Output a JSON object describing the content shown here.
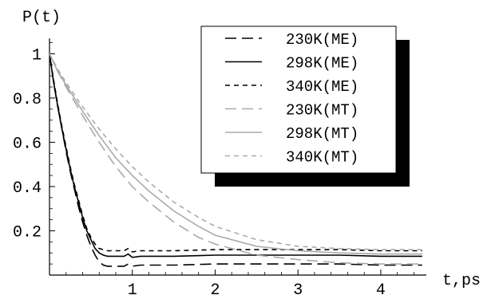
{
  "chart_data": {
    "type": "line",
    "title": "",
    "xlabel": "t,ps",
    "ylabel": "P(t)",
    "xlim": [
      0,
      4.55
    ],
    "ylim": [
      0,
      1.07
    ],
    "xticks": [
      1,
      2,
      3,
      4
    ],
    "yticks": [
      0.2,
      0.4,
      0.6,
      0.8,
      1
    ],
    "ytick_labels": [
      "0.2",
      "0.4",
      "0.6",
      "0.8",
      "1"
    ],
    "grid": false,
    "legend_position": "top-right",
    "series": [
      {
        "name": "230K(ME)",
        "color": "#000000",
        "dash": "long-dash",
        "x": [
          0,
          0.05,
          0.1,
          0.15,
          0.2,
          0.25,
          0.3,
          0.35,
          0.4,
          0.45,
          0.5,
          0.55,
          0.6,
          0.65,
          0.7,
          0.8,
          0.9,
          0.95,
          1.0,
          1.1,
          1.5,
          2.0,
          2.5,
          3.0,
          3.5,
          4.0,
          4.5
        ],
        "y": [
          1.0,
          0.87,
          0.76,
          0.66,
          0.56,
          0.47,
          0.39,
          0.31,
          0.24,
          0.18,
          0.13,
          0.09,
          0.06,
          0.045,
          0.04,
          0.04,
          0.04,
          0.05,
          0.04,
          0.045,
          0.045,
          0.05,
          0.05,
          0.05,
          0.05,
          0.045,
          0.045
        ]
      },
      {
        "name": "298K(ME)",
        "color": "#000000",
        "dash": "solid",
        "x": [
          0,
          0.05,
          0.1,
          0.15,
          0.2,
          0.25,
          0.3,
          0.35,
          0.4,
          0.45,
          0.5,
          0.55,
          0.6,
          0.65,
          0.7,
          0.8,
          0.9,
          0.95,
          1.0,
          1.1,
          1.5,
          2.0,
          2.5,
          3.0,
          3.5,
          4.0,
          4.5
        ],
        "y": [
          1.0,
          0.87,
          0.76,
          0.66,
          0.57,
          0.48,
          0.4,
          0.33,
          0.26,
          0.2,
          0.16,
          0.12,
          0.1,
          0.09,
          0.085,
          0.085,
          0.085,
          0.095,
          0.08,
          0.085,
          0.085,
          0.09,
          0.09,
          0.09,
          0.09,
          0.085,
          0.085
        ]
      },
      {
        "name": "340K(ME)",
        "color": "#000000",
        "dash": "short-dash",
        "x": [
          0,
          0.05,
          0.1,
          0.15,
          0.2,
          0.25,
          0.3,
          0.35,
          0.4,
          0.45,
          0.5,
          0.55,
          0.6,
          0.65,
          0.7,
          0.8,
          0.9,
          0.95,
          1.0,
          1.1,
          1.5,
          2.0,
          2.5,
          3.0,
          3.5,
          4.0,
          4.5
        ],
        "y": [
          1.0,
          0.88,
          0.77,
          0.67,
          0.58,
          0.49,
          0.41,
          0.34,
          0.27,
          0.21,
          0.17,
          0.14,
          0.12,
          0.115,
          0.11,
          0.11,
          0.11,
          0.12,
          0.105,
          0.11,
          0.11,
          0.115,
          0.115,
          0.115,
          0.115,
          0.11,
          0.11
        ]
      },
      {
        "name": "230K(MT)",
        "color": "#aaaaaa",
        "dash": "long-dash",
        "x": [
          0,
          0.1,
          0.2,
          0.4,
          0.6,
          0.8,
          1.0,
          1.2,
          1.5,
          1.8,
          2.0,
          2.5,
          3.0,
          3.5,
          4.0,
          4.5
        ],
        "y": [
          1.0,
          0.92,
          0.85,
          0.72,
          0.6,
          0.49,
          0.4,
          0.33,
          0.24,
          0.17,
          0.14,
          0.09,
          0.07,
          0.055,
          0.05,
          0.05
        ]
      },
      {
        "name": "298K(MT)",
        "color": "#aaaaaa",
        "dash": "solid",
        "x": [
          0,
          0.1,
          0.2,
          0.4,
          0.6,
          0.8,
          1.0,
          1.2,
          1.5,
          1.8,
          2.0,
          2.5,
          3.0,
          3.5,
          4.0,
          4.5
        ],
        "y": [
          1.0,
          0.92,
          0.86,
          0.74,
          0.63,
          0.53,
          0.45,
          0.38,
          0.29,
          0.22,
          0.18,
          0.13,
          0.11,
          0.1,
          0.095,
          0.095
        ]
      },
      {
        "name": "340K(MT)",
        "color": "#aaaaaa",
        "dash": "short-dash",
        "x": [
          0,
          0.1,
          0.2,
          0.4,
          0.6,
          0.8,
          1.0,
          1.2,
          1.5,
          1.8,
          2.0,
          2.5,
          3.0,
          3.5,
          4.0,
          4.5
        ],
        "y": [
          1.0,
          0.93,
          0.87,
          0.76,
          0.66,
          0.57,
          0.49,
          0.42,
          0.33,
          0.26,
          0.22,
          0.16,
          0.13,
          0.12,
          0.115,
          0.115
        ]
      }
    ]
  }
}
